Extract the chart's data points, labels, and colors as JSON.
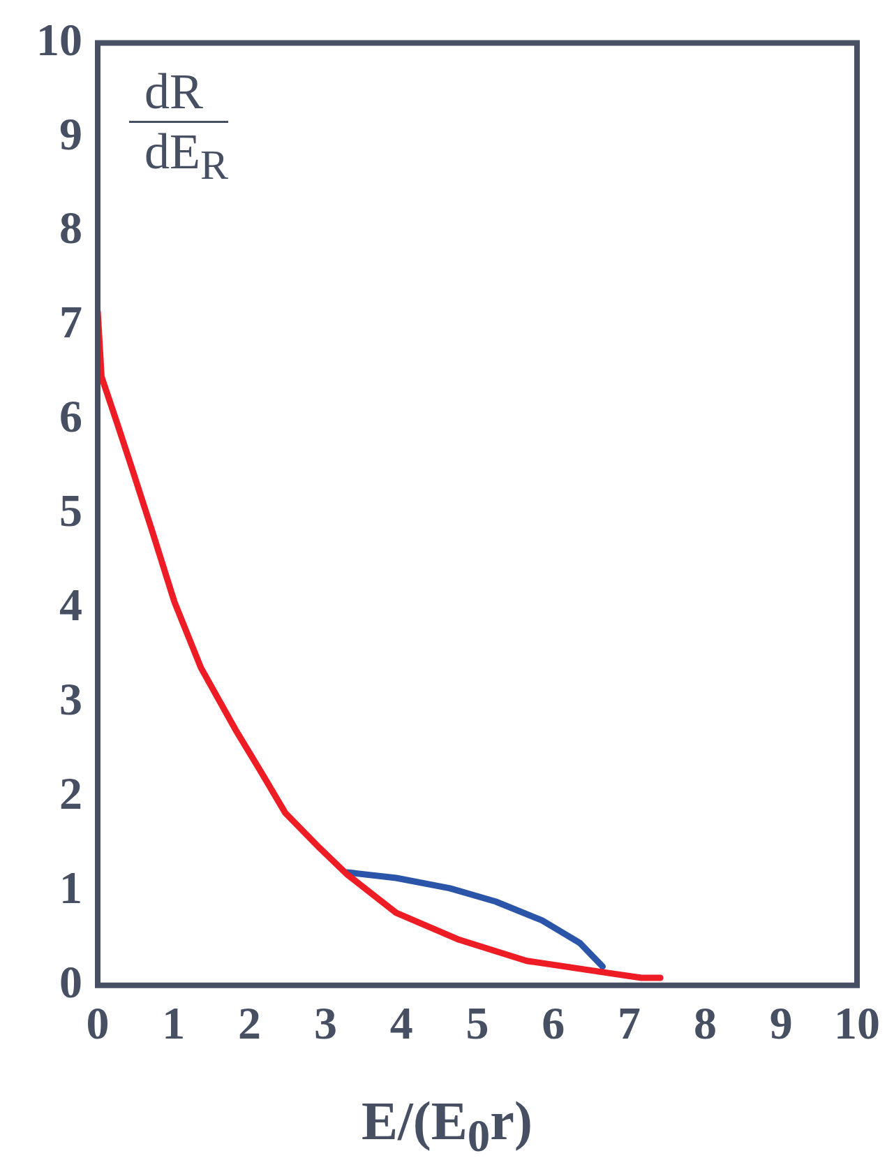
{
  "chart_data": {
    "type": "line",
    "xlabel": "E/(E$_{0}$r)",
    "annotations": [
      "dR",
      "dE$_{R}$"
    ],
    "xlim": [
      0,
      10
    ],
    "ylim": [
      0,
      10
    ],
    "xticks": [
      0,
      1,
      2,
      3,
      4,
      5,
      6,
      7,
      8,
      9,
      10
    ],
    "yticks": [
      0,
      1,
      2,
      3,
      4,
      5,
      6,
      7,
      8,
      9,
      10
    ],
    "grid": false,
    "legend": false,
    "marker": "none",
    "line_style": "solid",
    "series": [
      {
        "color": "#ee1c25",
        "x": [
          0,
          0.05,
          0.25,
          0.45,
          0.71,
          1.01,
          1.36,
          1.81,
          2.17,
          2.47,
          2.92,
          3.28,
          3.93,
          4.74,
          5.65,
          6.65,
          7.16,
          7.41
        ],
        "values": [
          7.15,
          6.46,
          5.98,
          5.49,
          4.84,
          4.07,
          3.37,
          2.72,
          2.24,
          1.83,
          1.46,
          1.18,
          0.77,
          0.49,
          0.26,
          0.14,
          0.08,
          0.08
        ]
      },
      {
        "color": "#2b55a8",
        "x": [
          3.28,
          3.93,
          4.64,
          5.24,
          5.85,
          6.35,
          6.65
        ],
        "values": [
          1.2,
          1.14,
          1.03,
          0.89,
          0.69,
          0.45,
          0.2
        ]
      }
    ]
  }
}
